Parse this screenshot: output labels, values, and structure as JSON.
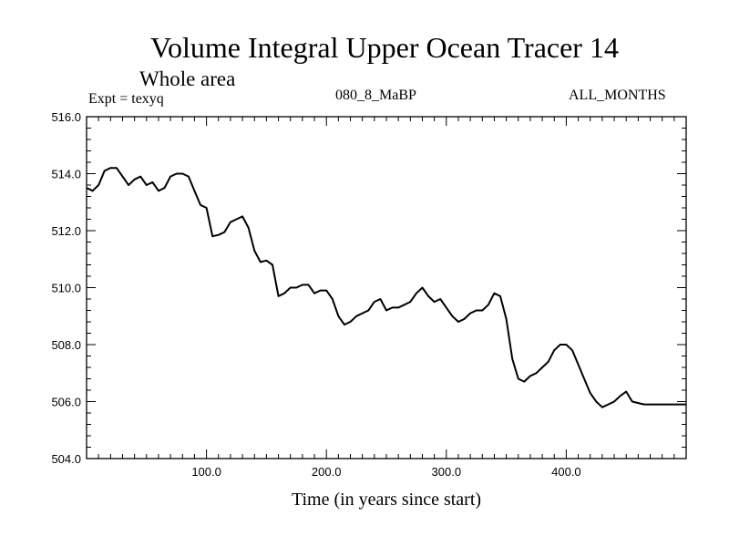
{
  "header": {
    "title": "Volume Integral Upper Ocean Tracer 14",
    "subtitle": "Whole area",
    "expt": "Expt = texyq",
    "period": "080_8_MaBP",
    "months": "ALL_MONTHS"
  },
  "chart_data": {
    "type": "line",
    "title": "Volume Integral Upper Ocean Tracer 14",
    "subtitle": "Whole area",
    "xlabel": "Time (in years since start)",
    "ylabel": "",
    "xlim": [
      0,
      500
    ],
    "ylim": [
      504,
      516
    ],
    "x_ticks": [
      100,
      200,
      300,
      400
    ],
    "x_tick_labels": [
      "100.0",
      "200.0",
      "300.0",
      "400.0"
    ],
    "y_ticks": [
      504,
      506,
      508,
      510,
      512,
      514,
      516
    ],
    "y_tick_labels": [
      "504.0",
      "506.0",
      "508.0",
      "510.0",
      "512.0",
      "514.0",
      "516.0"
    ],
    "grid": false,
    "series": [
      {
        "color": "#000000",
        "x": [
          0,
          5,
          10,
          15,
          20,
          25,
          30,
          35,
          40,
          45,
          50,
          55,
          60,
          65,
          70,
          75,
          80,
          85,
          90,
          95,
          100,
          105,
          110,
          115,
          120,
          125,
          130,
          135,
          140,
          145,
          150,
          155,
          160,
          165,
          170,
          175,
          180,
          185,
          190,
          195,
          200,
          205,
          210,
          215,
          220,
          225,
          230,
          235,
          240,
          245,
          250,
          255,
          260,
          265,
          270,
          275,
          280,
          285,
          290,
          295,
          300,
          305,
          310,
          315,
          320,
          325,
          330,
          335,
          340,
          345,
          350,
          355,
          360,
          365,
          370,
          375,
          380,
          385,
          390,
          395,
          400,
          405,
          410,
          415,
          420,
          425,
          430,
          435,
          440,
          445,
          450,
          455,
          460,
          465,
          470,
          475,
          480,
          485,
          490,
          495,
          500
        ],
        "y": [
          513.5,
          513.4,
          513.6,
          514.1,
          514.2,
          514.2,
          513.9,
          513.6,
          513.8,
          513.9,
          513.6,
          513.7,
          513.4,
          513.5,
          513.9,
          514.0,
          514.0,
          513.9,
          513.4,
          512.9,
          512.8,
          511.8,
          511.85,
          511.95,
          512.3,
          512.4,
          512.5,
          512.1,
          511.3,
          510.9,
          510.95,
          510.8,
          509.7,
          509.8,
          510.0,
          510.0,
          510.1,
          510.1,
          509.8,
          509.9,
          509.9,
          509.6,
          509.0,
          508.7,
          508.8,
          509.0,
          509.1,
          509.2,
          509.5,
          509.6,
          509.2,
          509.3,
          509.3,
          509.4,
          509.5,
          509.8,
          510.0,
          509.7,
          509.5,
          509.6,
          509.3,
          509.0,
          508.8,
          508.9,
          509.1,
          509.2,
          509.2,
          509.4,
          509.8,
          509.7,
          508.9,
          507.5,
          506.8,
          506.7,
          506.9,
          507.0,
          507.2,
          507.4,
          507.8,
          508.0,
          508.0,
          507.8,
          507.3,
          506.8,
          506.3,
          506.0,
          505.8,
          505.9,
          506.0,
          506.2,
          506.35,
          506.0,
          505.95,
          505.9,
          505.9,
          505.9,
          505.9,
          505.9,
          505.9,
          505.9,
          505.9
        ]
      }
    ]
  }
}
